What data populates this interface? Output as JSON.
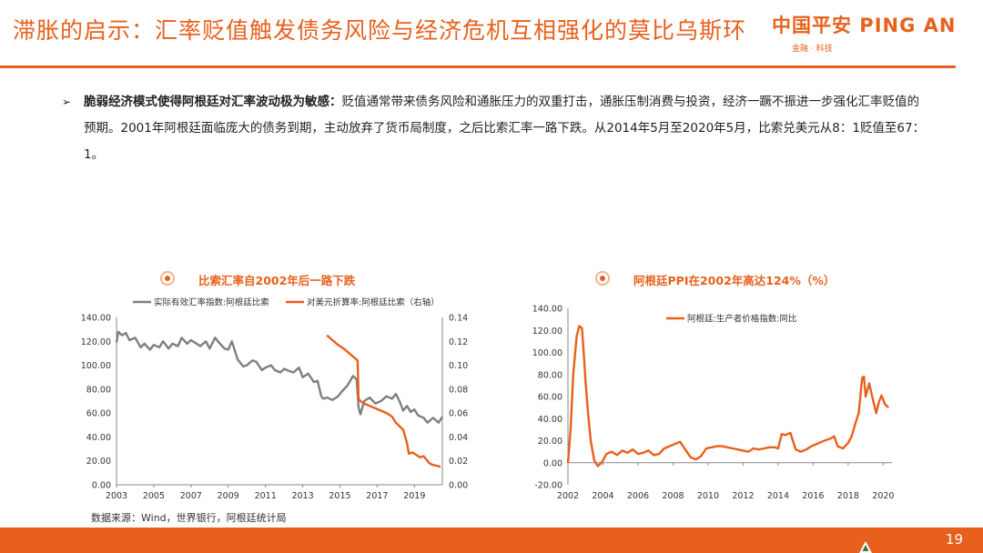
{
  "title": "滞胀的启示：汇率贬值触发债务风险与经济危机互相强化的莫比乌斯环",
  "logo": {
    "main": "中国平安 PING AN",
    "sub": "金融 · 科技"
  },
  "bullet": {
    "bold": "脆弱经济模式使得阿根廷对汇率波动极为敏感：",
    "text": "贬值通常带来债务风险和通胀压力的双重打击，通胀压制消费与投资，经济一蹶不振进一步强化汇率贬值的预期。2001年阿根廷面临庞大的债务到期，主动放弃了货币局制度，之后比索汇率一路下跌。从2014年5月至2020年5月，比索兑美元从8：1贬值至67：1。"
  },
  "source": "数据来源：Wind，世界银行，阿根廷统计局",
  "page_number": "19",
  "colors": {
    "accent": "#E8601C",
    "gray_series": "#7F7F7F"
  },
  "chart_data": [
    {
      "type": "line",
      "title": "比索汇率自2002年后一路下跌",
      "legend_placement": "top",
      "xlim": [
        2003,
        2020.5
      ],
      "x_ticks": [
        2003,
        2005,
        2007,
        2009,
        2011,
        2013,
        2015,
        2017,
        2019
      ],
      "y_left": {
        "ylim": [
          0,
          140
        ],
        "ticks": [
          "0.00",
          "20.00",
          "40.00",
          "60.00",
          "80.00",
          "100.00",
          "120.00",
          "140.00"
        ]
      },
      "y_right": {
        "ylim": [
          0,
          0.14
        ],
        "ticks": [
          "0.00",
          "0.02",
          "0.04",
          "0.06",
          "0.08",
          "0.10",
          "0.12",
          "0.14"
        ]
      },
      "series": [
        {
          "name": "实际有效汇率指数:阿根廷比索",
          "axis": "left",
          "color": "#7F7F7F",
          "x": [
            2003.0,
            2003.1,
            2003.3,
            2003.5,
            2003.7,
            2004.0,
            2004.3,
            2004.5,
            2004.8,
            2005.0,
            2005.3,
            2005.5,
            2005.8,
            2006.0,
            2006.3,
            2006.5,
            2006.8,
            2007.0,
            2007.3,
            2007.5,
            2007.8,
            2008.0,
            2008.3,
            2008.5,
            2008.8,
            2009.0,
            2009.2,
            2009.5,
            2009.8,
            2010.0,
            2010.3,
            2010.5,
            2010.8,
            2011.0,
            2011.3,
            2011.5,
            2011.8,
            2012.0,
            2012.3,
            2012.5,
            2012.8,
            2013.0,
            2013.3,
            2013.6,
            2013.8,
            2014.0,
            2014.1,
            2014.3,
            2014.6,
            2014.9,
            2015.1,
            2015.4,
            2015.7,
            2015.9,
            2016.0,
            2016.1,
            2016.3,
            2016.6,
            2016.9,
            2017.2,
            2017.5,
            2017.8,
            2018.0,
            2018.2,
            2018.4,
            2018.6,
            2018.8,
            2019.0,
            2019.2,
            2019.5,
            2019.7,
            2020.0,
            2020.3,
            2020.5
          ],
          "y": [
            119,
            128,
            125,
            127,
            121,
            123,
            115,
            118,
            113,
            117,
            115,
            120,
            114,
            118,
            116,
            123,
            118,
            121,
            118,
            116,
            120,
            114,
            123,
            119,
            114,
            113,
            120,
            105,
            99,
            100,
            104,
            103,
            96,
            98,
            100,
            96,
            94,
            97,
            95,
            94,
            98,
            90,
            93,
            86,
            87,
            74,
            72,
            73,
            71,
            74,
            78,
            83,
            91,
            88,
            65,
            59,
            70,
            73,
            68,
            70,
            74,
            72,
            76,
            70,
            62,
            66,
            61,
            63,
            58,
            56,
            52,
            56,
            52,
            57
          ]
        },
        {
          "name": "对美元折算率:阿根廷比索（右轴）",
          "axis": "right",
          "color": "#E8601C",
          "x": [
            2014.3,
            2014.6,
            2014.9,
            2015.2,
            2015.5,
            2015.8,
            2015.95,
            2016.0,
            2016.1,
            2016.3,
            2016.6,
            2016.9,
            2017.2,
            2017.5,
            2017.8,
            2018.0,
            2018.2,
            2018.4,
            2018.6,
            2018.7,
            2018.9,
            2019.1,
            2019.3,
            2019.5,
            2019.6,
            2019.8,
            2020.0,
            2020.2,
            2020.4
          ],
          "y": [
            0.125,
            0.121,
            0.117,
            0.114,
            0.11,
            0.106,
            0.104,
            0.072,
            0.07,
            0.068,
            0.066,
            0.064,
            0.062,
            0.06,
            0.057,
            0.052,
            0.049,
            0.046,
            0.035,
            0.026,
            0.027,
            0.025,
            0.023,
            0.024,
            0.022,
            0.018,
            0.0165,
            0.016,
            0.015
          ]
        }
      ]
    },
    {
      "type": "line",
      "title": "阿根廷PPI在2002年高达124%（%）",
      "legend_placement": "top",
      "xlim": [
        2002,
        2020.5
      ],
      "x_ticks": [
        2002,
        2004,
        2006,
        2008,
        2010,
        2012,
        2014,
        2016,
        2018,
        2020
      ],
      "y_left": {
        "ylim": [
          -20,
          140
        ],
        "ticks": [
          "-20.00",
          "0.00",
          "20.00",
          "40.00",
          "60.00",
          "80.00",
          "100.00",
          "120.00",
          "140.00"
        ]
      },
      "series": [
        {
          "name": "阿根廷:生产者价格指数:同比",
          "axis": "left",
          "color": "#E8601C",
          "x": [
            2002.0,
            2002.15,
            2002.3,
            2002.5,
            2002.65,
            2002.8,
            2002.9,
            2003.0,
            2003.15,
            2003.3,
            2003.5,
            2003.7,
            2003.85,
            2004.0,
            2004.2,
            2004.5,
            2004.8,
            2005.1,
            2005.4,
            2005.7,
            2006.0,
            2006.3,
            2006.6,
            2006.9,
            2007.2,
            2007.5,
            2007.8,
            2008.1,
            2008.4,
            2008.7,
            2009.0,
            2009.3,
            2009.6,
            2009.9,
            2010.2,
            2010.5,
            2010.8,
            2011.1,
            2011.4,
            2011.7,
            2012.0,
            2012.3,
            2012.6,
            2012.9,
            2013.2,
            2013.5,
            2013.8,
            2014.0,
            2014.2,
            2014.4,
            2014.7,
            2015.0,
            2015.3,
            2015.6,
            2015.9,
            2016.2,
            2016.5,
            2016.8,
            2017.0,
            2017.2,
            2017.4,
            2017.7,
            2018.0,
            2018.2,
            2018.4,
            2018.6,
            2018.8,
            2018.9,
            2019.0,
            2019.2,
            2019.4,
            2019.6,
            2019.75,
            2019.9,
            2020.1,
            2020.3
          ],
          "y": [
            0,
            30,
            80,
            115,
            124,
            122,
            100,
            75,
            45,
            20,
            2,
            -3,
            -1,
            2,
            8,
            10,
            7,
            11,
            9,
            12,
            8,
            9,
            11,
            7,
            8,
            13,
            15,
            17,
            19,
            12,
            5,
            3,
            6,
            13,
            14,
            15,
            15,
            14,
            13,
            12,
            11,
            10,
            13,
            12,
            13,
            14,
            14,
            13,
            26,
            25,
            27,
            12,
            10,
            12,
            15,
            17,
            19,
            21,
            22,
            24,
            15,
            13,
            18,
            24,
            35,
            45,
            77,
            78,
            60,
            72,
            58,
            45,
            55,
            61,
            53,
            50
          ]
        }
      ]
    }
  ]
}
